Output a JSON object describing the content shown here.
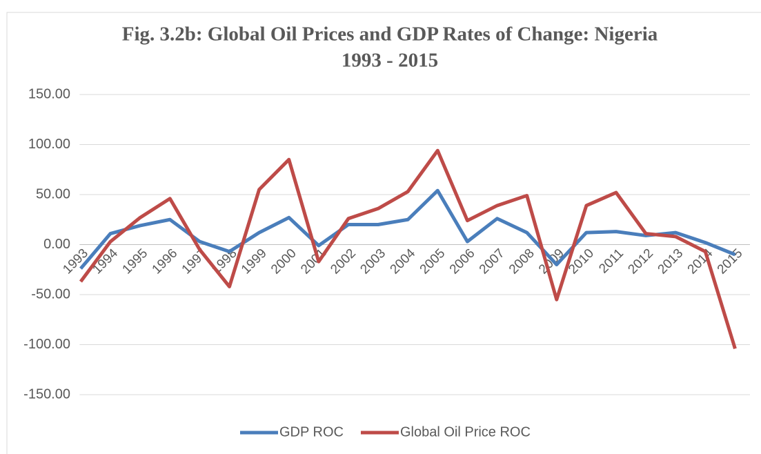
{
  "chart_data": {
    "type": "line",
    "title": [
      "Fig. 3.2b: Global Oil Prices and GDP Rates of Change: Nigeria",
      "1993 - 2015"
    ],
    "categories": [
      "1993",
      "1994",
      "1995",
      "1996",
      "1997",
      "1998",
      "1999",
      "2000",
      "2001",
      "2002",
      "2003",
      "2004",
      "2005",
      "2006",
      "2007",
      "2008",
      "2009",
      "2010",
      "2011",
      "2012",
      "2013",
      "2014",
      "2015"
    ],
    "series": [
      {
        "name": "GDP ROC",
        "color": "#4a7ebb",
        "values": [
          -24,
          11,
          19,
          25,
          3,
          -7,
          12,
          27,
          -1,
          20,
          20,
          25,
          54,
          3,
          26,
          12,
          -20,
          12,
          13,
          9,
          12,
          2,
          -10
        ]
      },
      {
        "name": "Global Oil Price ROC",
        "color": "#be4b48",
        "values": [
          -37,
          3,
          27,
          46,
          -5,
          -42,
          55,
          85,
          -17,
          26,
          36,
          53,
          94,
          24,
          39,
          49,
          -55,
          39,
          52,
          11,
          8,
          -7,
          -104
        ]
      }
    ],
    "ylim": [
      -150,
      150
    ],
    "yticks": [
      {
        "value": -150,
        "label": "-150.00"
      },
      {
        "value": -100,
        "label": "-100.00"
      },
      {
        "value": -50,
        "label": "-50.00"
      },
      {
        "value": 0,
        "label": "0.00"
      },
      {
        "value": 50,
        "label": "50.00"
      },
      {
        "value": 100,
        "label": "100.00"
      },
      {
        "value": 150,
        "label": "150.00"
      }
    ],
    "grid": true,
    "legend": "bottom"
  }
}
